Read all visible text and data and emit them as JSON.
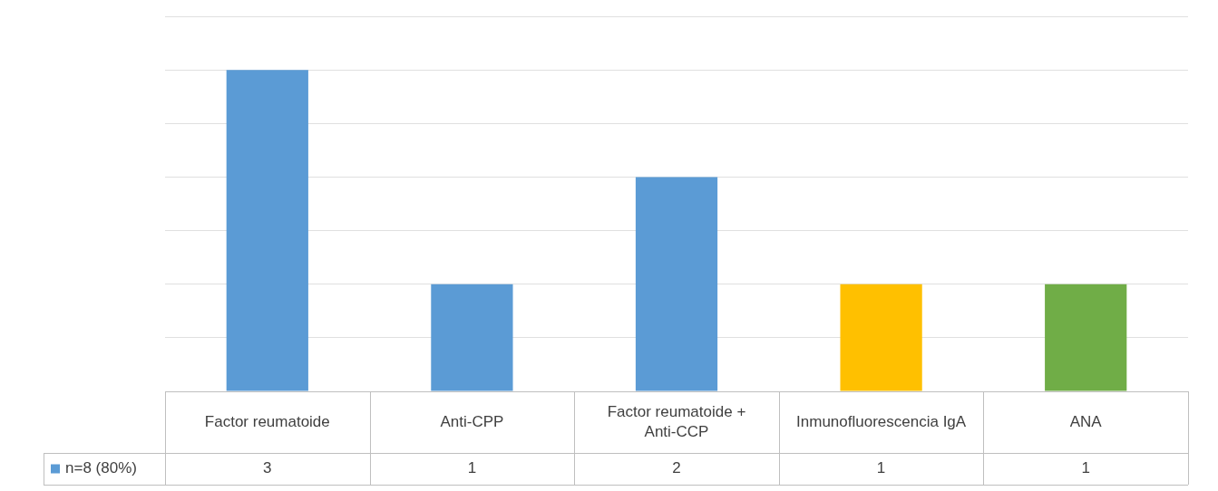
{
  "chart_data": {
    "type": "bar",
    "categories": [
      "Factor reumatoide",
      "Anti-CPP",
      "Factor reumatoide + Anti-CCP",
      "Inmunofluorescencia IgA",
      "ANA"
    ],
    "series": [
      {
        "name": "n=8 (80%)",
        "color": "#5b9bd5",
        "colors": [
          "#5b9bd5",
          "#5b9bd5",
          "#5b9bd5",
          "#ffc000",
          "#70ad47"
        ],
        "values": [
          3,
          1,
          2,
          1,
          1
        ]
      }
    ],
    "ylim": [
      0,
      3.5
    ],
    "yticks": [
      {
        "value": 0,
        "label": null
      },
      {
        "value": 0.5,
        "label": null
      },
      {
        "value": 1,
        "label": null
      },
      {
        "value": 1.5,
        "label": null
      },
      {
        "value": 2,
        "label": null
      },
      {
        "value": 2.5,
        "label": null
      },
      {
        "value": 3,
        "label": null
      },
      {
        "value": 3.5,
        "label": null
      }
    ],
    "tick_labels": "x",
    "grid": "y",
    "legend": "bottom",
    "data_labels": true
  }
}
